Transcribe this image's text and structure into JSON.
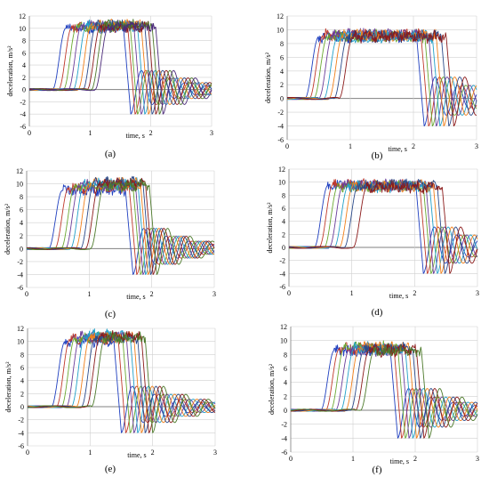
{
  "figure": {
    "panels": [
      {
        "caption": "(a)"
      },
      {
        "caption": "(b)"
      },
      {
        "caption": "(c)"
      },
      {
        "caption": "(d)"
      },
      {
        "caption": "(e)"
      },
      {
        "caption": "(f)"
      }
    ]
  },
  "colors": {
    "grid": "#d0d0d0",
    "zero_axis": "#808080",
    "palette": [
      "#1f3fbf",
      "#c0392b",
      "#6aa832",
      "#6a3d9a",
      "#21a0c8",
      "#f07f1a",
      "#2a4a8a",
      "#8b1a1a",
      "#4d7a2b",
      "#4b2a7a",
      "#1a7d9a",
      "#b35a12",
      "#000000",
      "#9a9a9a"
    ]
  },
  "chart_data": [
    {
      "type": "line",
      "panel": "(a)",
      "xlabel": "time, s",
      "ylabel": "deceleration, m/s²",
      "xlim": [
        0,
        3
      ],
      "ylim": [
        -6,
        12
      ],
      "xticks": [
        0,
        1,
        2,
        3
      ],
      "yticks": [
        -6,
        -4,
        -2,
        0,
        2,
        4,
        6,
        8,
        10,
        12
      ],
      "grid": true,
      "legend": "none",
      "series": [
        {
          "start": 0.38,
          "end": 1.55,
          "plateau": 10.0
        },
        {
          "start": 0.48,
          "end": 1.62,
          "plateau": 10.2
        },
        {
          "start": 0.56,
          "end": 1.66,
          "plateau": 10.3
        },
        {
          "start": 0.64,
          "end": 1.72,
          "plateau": 10.5
        },
        {
          "start": 0.72,
          "end": 1.78,
          "plateau": 10.4
        },
        {
          "start": 0.8,
          "end": 1.84,
          "plateau": 10.6
        },
        {
          "start": 0.88,
          "end": 1.9,
          "plateau": 10.5
        },
        {
          "start": 0.95,
          "end": 1.96,
          "plateau": 10.3
        },
        {
          "start": 1.02,
          "end": 2.02,
          "plateau": 10.5
        },
        {
          "start": 1.08,
          "end": 2.08,
          "plateau": 10.2
        }
      ]
    },
    {
      "type": "line",
      "panel": "(b)",
      "xlabel": "time, s",
      "ylabel": "deceleration, m/s²",
      "xlim": [
        0,
        3
      ],
      "ylim": [
        -6,
        12
      ],
      "xticks": [
        0,
        1,
        2,
        3
      ],
      "yticks": [
        -6,
        -4,
        -2,
        0,
        2,
        4,
        6,
        8,
        10,
        12
      ],
      "grid": true,
      "legend": "none",
      "series": [
        {
          "start": 0.28,
          "end": 2.05,
          "plateau": 9.0
        },
        {
          "start": 0.35,
          "end": 2.12,
          "plateau": 9.2
        },
        {
          "start": 0.42,
          "end": 2.18,
          "plateau": 9.1
        },
        {
          "start": 0.5,
          "end": 2.24,
          "plateau": 9.3
        },
        {
          "start": 0.58,
          "end": 2.3,
          "plateau": 9.0
        },
        {
          "start": 0.66,
          "end": 2.36,
          "plateau": 9.2
        },
        {
          "start": 0.74,
          "end": 2.44,
          "plateau": 9.1
        },
        {
          "start": 0.82,
          "end": 2.52,
          "plateau": 9.0
        }
      ]
    },
    {
      "type": "line",
      "panel": "(c)",
      "xlabel": "time, s",
      "ylabel": "deceleration, m/s²",
      "xlim": [
        0,
        3
      ],
      "ylim": [
        -6,
        12
      ],
      "xticks": [
        0,
        1,
        2,
        3
      ],
      "yticks": [
        -6,
        -4,
        -2,
        0,
        2,
        4,
        6,
        8,
        10,
        12
      ],
      "grid": true,
      "legend": "none",
      "series": [
        {
          "start": 0.35,
          "end": 1.58,
          "plateau": 9.0
        },
        {
          "start": 0.45,
          "end": 1.64,
          "plateau": 9.4
        },
        {
          "start": 0.55,
          "end": 1.7,
          "plateau": 9.6
        },
        {
          "start": 0.62,
          "end": 1.74,
          "plateau": 9.8
        },
        {
          "start": 0.7,
          "end": 1.78,
          "plateau": 10.0
        },
        {
          "start": 0.78,
          "end": 1.82,
          "plateau": 10.1
        },
        {
          "start": 0.86,
          "end": 1.86,
          "plateau": 10.2
        },
        {
          "start": 0.94,
          "end": 1.9,
          "plateau": 10.0
        },
        {
          "start": 1.02,
          "end": 1.96,
          "plateau": 9.8
        }
      ]
    },
    {
      "type": "line",
      "panel": "(d)",
      "xlabel": "time, s",
      "ylabel": "deceleration, m/s²",
      "xlim": [
        0,
        3
      ],
      "ylim": [
        -6,
        12
      ],
      "xticks": [
        0,
        1,
        2,
        3
      ],
      "yticks": [
        -6,
        -4,
        -2,
        0,
        2,
        4,
        6,
        8,
        10,
        12
      ],
      "grid": true,
      "legend": "none",
      "series": [
        {
          "start": 0.4,
          "end": 2.02,
          "plateau": 9.5
        },
        {
          "start": 0.48,
          "end": 2.08,
          "plateau": 9.6
        },
        {
          "start": 0.56,
          "end": 2.14,
          "plateau": 9.4
        },
        {
          "start": 0.64,
          "end": 2.18,
          "plateau": 9.5
        },
        {
          "start": 0.72,
          "end": 2.24,
          "plateau": 9.3
        },
        {
          "start": 0.8,
          "end": 2.3,
          "plateau": 9.4
        },
        {
          "start": 0.88,
          "end": 2.36,
          "plateau": 9.5
        },
        {
          "start": 1.02,
          "end": 2.44,
          "plateau": 9.2
        }
      ]
    },
    {
      "type": "line",
      "panel": "(e)",
      "xlabel": "time, s",
      "ylabel": "deceleration, m/s²",
      "xlim": [
        0,
        3
      ],
      "ylim": [
        -6,
        12
      ],
      "xticks": [
        0,
        1,
        2,
        3
      ],
      "yticks": [
        -6,
        -4,
        -2,
        0,
        2,
        4,
        6,
        8,
        10,
        12
      ],
      "grid": true,
      "legend": "none",
      "series": [
        {
          "start": 0.38,
          "end": 1.38,
          "plateau": 10.0
        },
        {
          "start": 0.46,
          "end": 1.45,
          "plateau": 10.4
        },
        {
          "start": 0.54,
          "end": 1.52,
          "plateau": 10.6
        },
        {
          "start": 0.62,
          "end": 1.58,
          "plateau": 10.8
        },
        {
          "start": 0.7,
          "end": 1.64,
          "plateau": 11.0
        },
        {
          "start": 0.78,
          "end": 1.7,
          "plateau": 10.7
        },
        {
          "start": 0.86,
          "end": 1.76,
          "plateau": 10.5
        },
        {
          "start": 0.94,
          "end": 1.82,
          "plateau": 10.8
        },
        {
          "start": 1.02,
          "end": 1.88,
          "plateau": 10.6
        }
      ]
    },
    {
      "type": "line",
      "panel": "(f)",
      "xlabel": "time, s",
      "ylabel": "deceleration, m/s²",
      "xlim": [
        0,
        3
      ],
      "ylim": [
        -6,
        12
      ],
      "xticks": [
        0,
        1,
        2,
        3
      ],
      "yticks": [
        -6,
        -4,
        -2,
        0,
        2,
        4,
        6,
        8,
        10,
        12
      ],
      "grid": true,
      "legend": "none",
      "series": [
        {
          "start": 0.48,
          "end": 1.6,
          "plateau": 8.6
        },
        {
          "start": 0.56,
          "end": 1.66,
          "plateau": 8.8
        },
        {
          "start": 0.64,
          "end": 1.72,
          "plateau": 9.0
        },
        {
          "start": 0.72,
          "end": 1.78,
          "plateau": 8.7
        },
        {
          "start": 0.8,
          "end": 1.84,
          "plateau": 8.9
        },
        {
          "start": 0.88,
          "end": 1.9,
          "plateau": 9.0
        },
        {
          "start": 0.96,
          "end": 1.96,
          "plateau": 8.8
        },
        {
          "start": 1.04,
          "end": 2.02,
          "plateau": 8.6
        },
        {
          "start": 1.12,
          "end": 2.1,
          "plateau": 8.5
        }
      ]
    }
  ]
}
